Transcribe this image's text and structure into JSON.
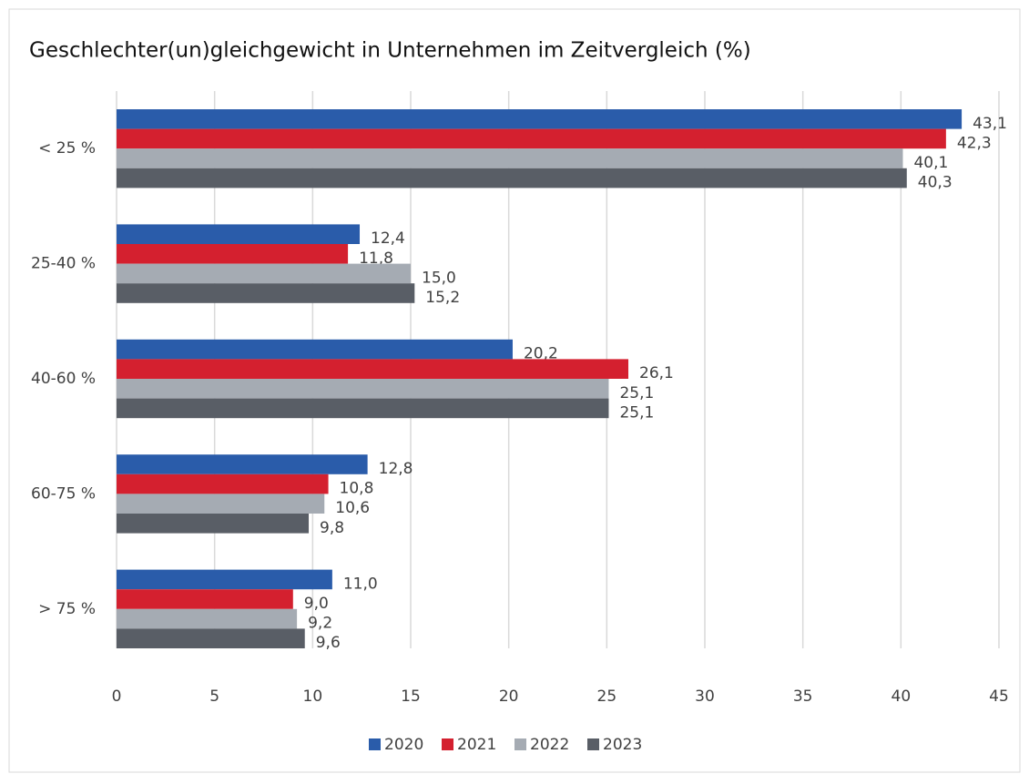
{
  "chart_data": {
    "type": "hbar",
    "title": "Geschlechter(un)gleichgewicht in Unternehmen im Zeitvergleich (%)",
    "categories": [
      "< 25 %",
      "25-40 %",
      "40-60 %",
      "60-75 %",
      "> 75 %"
    ],
    "series": [
      {
        "name": "2020",
        "color": "#2a5caa",
        "values": [
          43.1,
          12.4,
          20.2,
          12.8,
          11.0
        ],
        "value_labels": [
          "43,1",
          "12,4",
          "20,2",
          "12,8",
          "11,0"
        ]
      },
      {
        "name": "2021",
        "color": "#d4202f",
        "values": [
          42.3,
          11.8,
          26.1,
          10.8,
          9.0
        ],
        "value_labels": [
          "42,3",
          "11,8",
          "26,1",
          "10,8",
          "9,0"
        ]
      },
      {
        "name": "2022",
        "color": "#a5abb3",
        "values": [
          40.1,
          15.0,
          25.1,
          10.6,
          9.2
        ],
        "value_labels": [
          "40,1",
          "15,0",
          "25,1",
          "10,6",
          "9,2"
        ]
      },
      {
        "name": "2023",
        "color": "#595e66",
        "values": [
          40.3,
          15.2,
          25.1,
          9.8,
          9.6
        ],
        "value_labels": [
          "40,3",
          "15,2",
          "25,1",
          "9,8",
          "9,6"
        ]
      }
    ],
    "xlim": [
      0,
      45
    ],
    "xticks": [
      0,
      5,
      10,
      15,
      20,
      25,
      30,
      35,
      40,
      45
    ],
    "grid": true,
    "legend": "bottom"
  }
}
